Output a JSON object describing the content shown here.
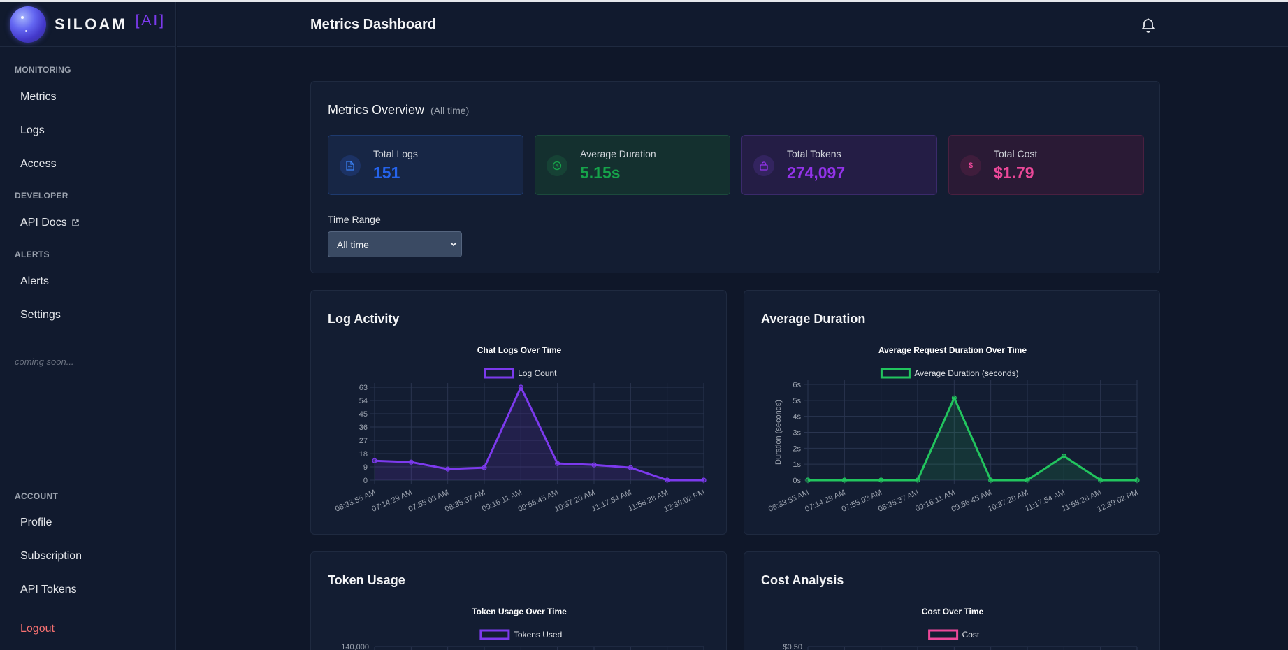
{
  "brand": {
    "name": "SILOAM",
    "suffix": "[AI]"
  },
  "sidebar": {
    "sections": [
      {
        "label": "MONITORING",
        "items": [
          {
            "label": "Metrics"
          },
          {
            "label": "Logs"
          },
          {
            "label": "Access"
          }
        ]
      },
      {
        "label": "DEVELOPER",
        "items": [
          {
            "label": "API Docs"
          }
        ]
      },
      {
        "label": "ALERTS",
        "items": [
          {
            "label": "Alerts"
          },
          {
            "label": "Settings"
          }
        ]
      }
    ],
    "coming_soon": "coming soon...",
    "account": {
      "label": "ACCOUNT",
      "items": [
        {
          "label": "Profile"
        },
        {
          "label": "Subscription"
        },
        {
          "label": "API Tokens"
        }
      ]
    },
    "logout": "Logout"
  },
  "header": {
    "title": "Metrics Dashboard",
    "icon": "bell-icon"
  },
  "overview": {
    "title": "Metrics Overview",
    "subtitle": "(All time)",
    "stats": [
      {
        "label": "Total Logs",
        "value": "151",
        "icon": "file-icon",
        "color": "#2563eb"
      },
      {
        "label": "Average Duration",
        "value": "5.15s",
        "icon": "clock-icon",
        "color": "#16a34a"
      },
      {
        "label": "Total Tokens",
        "value": "274,097",
        "icon": "lock-icon",
        "color": "#9333ea"
      },
      {
        "label": "Total Cost",
        "value": "$1.79",
        "icon": "dollar-icon",
        "color": "#ec4899"
      }
    ],
    "time_range": {
      "label": "Time Range",
      "value": "All time"
    }
  },
  "panels": {
    "log_activity": "Log Activity",
    "average_duration": "Average Duration",
    "token_usage": "Token Usage",
    "cost_analysis": "Cost Analysis"
  },
  "chart_data": [
    {
      "type": "line",
      "title": "Chat Logs Over Time",
      "series": [
        {
          "name": "Log Count",
          "values": [
            14,
            13,
            8,
            9,
            67,
            12,
            11,
            9,
            0,
            0
          ]
        }
      ],
      "categories": [
        "06:33:55 AM",
        "07:14:29 AM",
        "07:55:03 AM",
        "08:35:37 AM",
        "09:16:11 AM",
        "09:56:45 AM",
        "10:37:20 AM",
        "11:17:54 AM",
        "11:58:28 AM",
        "12:39:02 PM"
      ],
      "yticks": [
        "0",
        "9",
        "18",
        "27",
        "36",
        "45",
        "54",
        "63"
      ],
      "ylim": [
        0,
        67
      ],
      "color": "#7c3aed",
      "legend": "top",
      "grid": true
    },
    {
      "type": "line",
      "title": "Average Request Duration Over Time",
      "ylabel": "Duration (seconds)",
      "series": [
        {
          "name": "Average Duration (seconds)",
          "values": [
            0,
            0,
            0,
            0,
            5.15,
            0,
            0,
            1.5,
            0,
            0
          ]
        }
      ],
      "categories": [
        "06:33:55 AM",
        "07:14:29 AM",
        "07:55:03 AM",
        "08:35:37 AM",
        "09:16:11 AM",
        "09:56:45 AM",
        "10:37:20 AM",
        "11:17:54 AM",
        "11:58:28 AM",
        "12:39:02 PM"
      ],
      "yticks": [
        "0s",
        "1s",
        "2s",
        "3s",
        "4s",
        "5s",
        "6s"
      ],
      "ylim": [
        0,
        6
      ],
      "color": "#22c55e",
      "legend": "top",
      "grid": true
    },
    {
      "type": "line",
      "title": "Token Usage Over Time",
      "series": [
        {
          "name": "Tokens Used",
          "values": []
        }
      ],
      "yticks": [
        "140,000"
      ],
      "color": "#7c3aed",
      "legend": "top"
    },
    {
      "type": "line",
      "title": "Cost Over Time",
      "series": [
        {
          "name": "Cost",
          "values": []
        }
      ],
      "yticks": [
        "$0.50"
      ],
      "color": "#ec4899",
      "legend": "top"
    }
  ]
}
